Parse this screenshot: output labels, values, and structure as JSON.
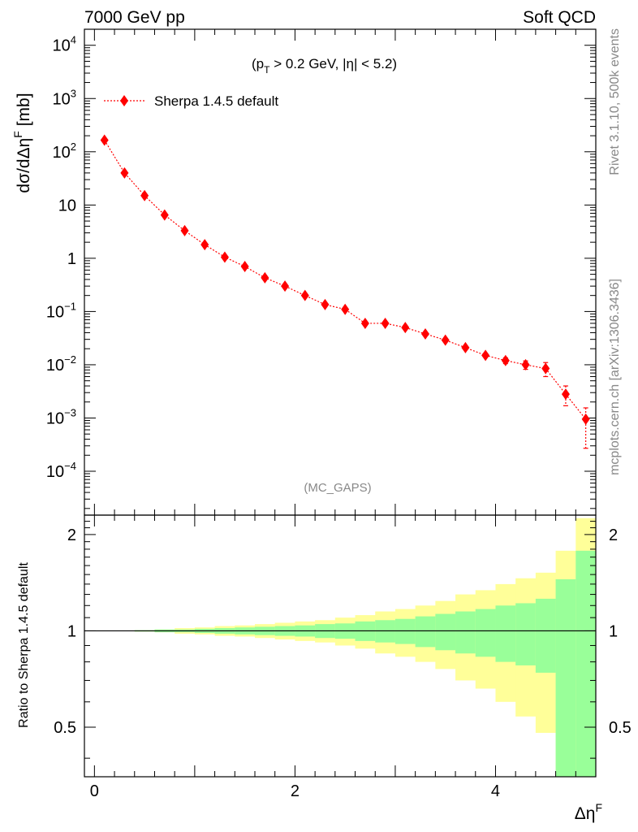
{
  "header": {
    "left_label": "7000 GeV pp",
    "right_label": "Soft QCD"
  },
  "side_labels": {
    "rivet": "Rivet 3.1.10,  500k events",
    "mcplots": "mcplots.cern.ch [arXiv:1306.3436]"
  },
  "main_plot": {
    "ylabel": "dσ/dΔη",
    "ylabel_sup": "F",
    "ylabel_unit": " [mb]",
    "cut_text": {
      "p": "(p",
      "p_sub": "T",
      "rest": " > 0.2 GeV, |η| < 5.2)"
    },
    "watermark": "(MC_GAPS)",
    "legend_label": "Sherpa 1.4.5 default",
    "ytick_labels": [
      {
        "base": "10",
        "exp": "4",
        "value": 10000
      },
      {
        "base": "10",
        "exp": "3",
        "value": 1000
      },
      {
        "base": "10",
        "exp": "2",
        "value": 100
      },
      {
        "base": "10",
        "exp": "",
        "value": 10
      },
      {
        "base": "1",
        "exp": "",
        "value": 1
      },
      {
        "base": "10",
        "exp": "−1",
        "value": 0.1
      },
      {
        "base": "10",
        "exp": "−2",
        "value": 0.01
      },
      {
        "base": "10",
        "exp": "−3",
        "value": 0.001
      },
      {
        "base": "10",
        "exp": "−4",
        "value": 0.0001
      }
    ]
  },
  "ratio_plot": {
    "ylabel": "Ratio to Sherpa 1.4.5 default",
    "ytick_labels": [
      {
        "label": "2",
        "value": 2
      },
      {
        "label": "1",
        "value": 1
      },
      {
        "label": "0.5",
        "value": 0.5
      }
    ],
    "xtick_labels": [
      {
        "label": "0",
        "value": 0
      },
      {
        "label": "2",
        "value": 2
      },
      {
        "label": "4",
        "value": 4
      }
    ],
    "xlabel": "Δη",
    "xlabel_sup": "F"
  },
  "colors": {
    "series": "#ff0000",
    "band_inner": "#99ff99",
    "band_outer": "#ffff99"
  },
  "chart_data": {
    "type": "scatter",
    "log_y": true,
    "xlim": [
      -0.1,
      5.0
    ],
    "ylim": [
      1.5e-05,
      20000
    ],
    "ratio_ylim": [
      0.35,
      2.3
    ],
    "series": [
      {
        "name": "Sherpa 1.4.5 default",
        "x": [
          0.1,
          0.3,
          0.5,
          0.7,
          0.9,
          1.1,
          1.3,
          1.5,
          1.7,
          1.9,
          2.1,
          2.3,
          2.5,
          2.7,
          2.9,
          3.1,
          3.3,
          3.5,
          3.7,
          3.9,
          4.1,
          4.3,
          4.5,
          4.7,
          4.9
        ],
        "y": [
          165,
          40,
          15,
          6.5,
          3.3,
          1.8,
          1.05,
          0.7,
          0.43,
          0.3,
          0.2,
          0.135,
          0.11,
          0.06,
          0.06,
          0.05,
          0.038,
          0.029,
          0.021,
          0.015,
          0.012,
          0.01,
          0.0085,
          0.0028,
          0.00095
        ],
        "y_err_low": [
          0,
          0,
          0,
          0,
          0,
          0,
          0,
          0,
          0,
          0,
          0,
          0,
          0,
          0,
          0,
          0,
          0,
          0,
          0,
          0,
          0.0015,
          0.0018,
          0.0025,
          0.0011,
          0.00068
        ],
        "y_err_high": [
          0,
          0,
          0,
          0,
          0,
          0,
          0,
          0,
          0,
          0,
          0,
          0,
          0,
          0,
          0,
          0,
          0,
          0,
          0,
          0,
          0.0015,
          0.0018,
          0.0025,
          0.0012,
          0.0006
        ]
      }
    ],
    "ratio_bands": {
      "bin_edges": [
        0,
        0.2,
        0.4,
        0.6,
        0.8,
        1.0,
        1.2,
        1.4,
        1.6,
        1.8,
        2.0,
        2.2,
        2.4,
        2.6,
        2.8,
        3.0,
        3.2,
        3.4,
        3.6,
        3.8,
        4.0,
        4.2,
        4.4,
        4.6,
        4.8,
        5.0
      ],
      "inner_up": [
        1.0,
        1.0,
        1.005,
        1.01,
        1.01,
        1.015,
        1.02,
        1.025,
        1.03,
        1.035,
        1.04,
        1.05,
        1.055,
        1.07,
        1.08,
        1.09,
        1.11,
        1.13,
        1.15,
        1.17,
        1.2,
        1.22,
        1.26,
        1.45,
        1.78
      ],
      "inner_down": [
        1.0,
        1.0,
        0.995,
        0.99,
        0.99,
        0.985,
        0.98,
        0.975,
        0.97,
        0.965,
        0.96,
        0.95,
        0.945,
        0.93,
        0.92,
        0.91,
        0.89,
        0.87,
        0.85,
        0.83,
        0.8,
        0.78,
        0.74,
        0.35,
        0.35
      ],
      "outer_up": [
        1.0,
        1.0,
        1.005,
        1.01,
        1.02,
        1.025,
        1.035,
        1.04,
        1.05,
        1.06,
        1.07,
        1.08,
        1.1,
        1.12,
        1.15,
        1.17,
        1.2,
        1.24,
        1.3,
        1.34,
        1.4,
        1.46,
        1.52,
        1.78,
        2.25
      ],
      "outer_down": [
        1.0,
        1.0,
        0.995,
        0.99,
        0.98,
        0.975,
        0.965,
        0.96,
        0.95,
        0.94,
        0.93,
        0.92,
        0.9,
        0.88,
        0.85,
        0.83,
        0.8,
        0.76,
        0.7,
        0.66,
        0.6,
        0.54,
        0.48,
        0.35,
        0.35
      ]
    },
    "ratio_reference": 1
  }
}
